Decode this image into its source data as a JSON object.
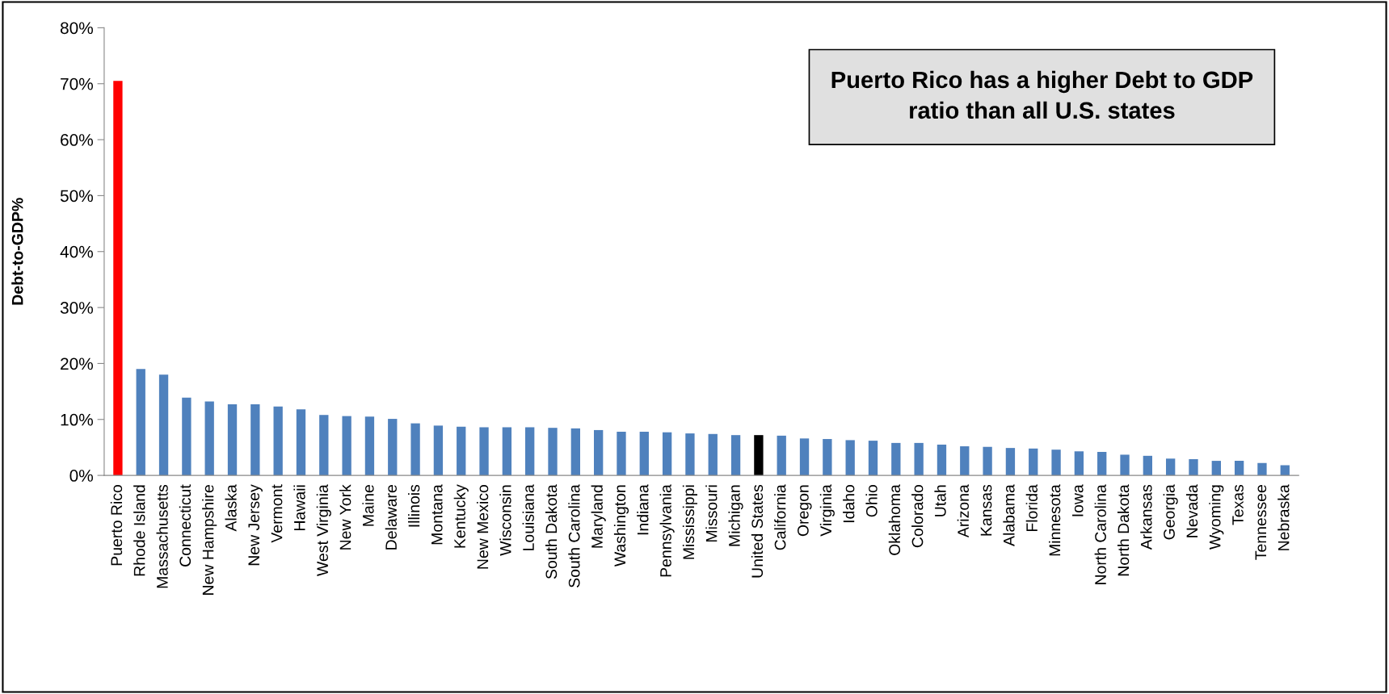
{
  "chart_data": {
    "type": "bar",
    "title": "Puerto Rico has a higher Debt to GDP\nratio than all U.S. states",
    "ylabel": "Debt-to-GDP%",
    "categories": [
      "Puerto Rico",
      "Rhode Island",
      "Massachusetts",
      "Connecticut",
      "New Hampshire",
      "Alaska",
      "New Jersey",
      "Vermont",
      "Hawaii",
      "West Virginia",
      "New York",
      "Maine",
      "Delaware",
      "Illinois",
      "Montana",
      "Kentucky",
      "New Mexico",
      "Wisconsin",
      "Louisiana",
      "South Dakota",
      "South Carolina",
      "Maryland",
      "Washington",
      "Indiana",
      "Pennsylvania",
      "Mississippi",
      "Missouri",
      "Michigan",
      "United States",
      "California",
      "Oregon",
      "Virginia",
      "Idaho",
      "Ohio",
      "Oklahoma",
      "Colorado",
      "Utah",
      "Arizona",
      "Kansas",
      "Alabama",
      "Florida",
      "Minnesota",
      "Iowa",
      "North Carolina",
      "North Dakota",
      "Arkansas",
      "Georgia",
      "Nevada",
      "Wyoming",
      "Texas",
      "Tennessee",
      "Nebraska"
    ],
    "values": [
      70.5,
      19.0,
      18.0,
      13.9,
      13.2,
      12.7,
      12.7,
      12.3,
      11.8,
      10.8,
      10.6,
      10.5,
      10.1,
      9.3,
      8.9,
      8.7,
      8.6,
      8.6,
      8.6,
      8.5,
      8.4,
      8.1,
      7.8,
      7.8,
      7.7,
      7.5,
      7.4,
      7.2,
      7.2,
      7.1,
      6.6,
      6.5,
      6.3,
      6.2,
      5.8,
      5.8,
      5.5,
      5.2,
      5.1,
      4.9,
      4.8,
      4.6,
      4.3,
      4.2,
      3.7,
      3.5,
      3.0,
      2.9,
      2.6,
      2.6,
      2.2,
      1.8
    ],
    "colors": [
      "#ff0000",
      "#4f81bd",
      "#4f81bd",
      "#4f81bd",
      "#4f81bd",
      "#4f81bd",
      "#4f81bd",
      "#4f81bd",
      "#4f81bd",
      "#4f81bd",
      "#4f81bd",
      "#4f81bd",
      "#4f81bd",
      "#4f81bd",
      "#4f81bd",
      "#4f81bd",
      "#4f81bd",
      "#4f81bd",
      "#4f81bd",
      "#4f81bd",
      "#4f81bd",
      "#4f81bd",
      "#4f81bd",
      "#4f81bd",
      "#4f81bd",
      "#4f81bd",
      "#4f81bd",
      "#4f81bd",
      "#000000",
      "#4f81bd",
      "#4f81bd",
      "#4f81bd",
      "#4f81bd",
      "#4f81bd",
      "#4f81bd",
      "#4f81bd",
      "#4f81bd",
      "#4f81bd",
      "#4f81bd",
      "#4f81bd",
      "#4f81bd",
      "#4f81bd",
      "#4f81bd",
      "#4f81bd",
      "#4f81bd",
      "#4f81bd",
      "#4f81bd",
      "#4f81bd",
      "#4f81bd",
      "#4f81bd",
      "#4f81bd",
      "#4f81bd"
    ],
    "ylim": [
      0,
      80
    ],
    "yticks": [
      {
        "value": 0,
        "label": "0%"
      },
      {
        "value": 10,
        "label": "10%"
      },
      {
        "value": 20,
        "label": "20%"
      },
      {
        "value": 30,
        "label": "30%"
      },
      {
        "value": 40,
        "label": "40%"
      },
      {
        "value": 50,
        "label": "50%"
      },
      {
        "value": 60,
        "label": "60%"
      },
      {
        "value": 70,
        "label": "70%"
      },
      {
        "value": 80,
        "label": "80%"
      }
    ],
    "grid": false,
    "legend": false
  }
}
